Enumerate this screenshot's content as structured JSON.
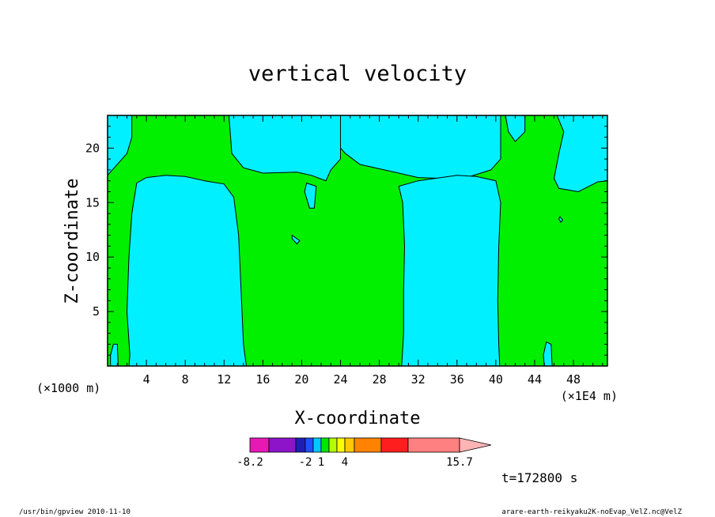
{
  "chart_data": {
    "type": "contour",
    "title": "vertical velocity",
    "xlabel": "X-coordinate",
    "ylabel": "Z-coordinate",
    "x_unit_left": "(×1000 m)",
    "x_unit_right": "(×1E4 m)",
    "xlim": [
      0,
      51.5
    ],
    "ylim": [
      0,
      23
    ],
    "x_ticks": [
      "4",
      "8",
      "12",
      "16",
      "20",
      "24",
      "28",
      "32",
      "36",
      "40",
      "44",
      "48"
    ],
    "y_ticks": [
      "5",
      "10",
      "15",
      "20"
    ],
    "x_tick_values": [
      4,
      8,
      12,
      16,
      20,
      24,
      28,
      32,
      36,
      40,
      44,
      48
    ],
    "y_tick_values": [
      5,
      10,
      15,
      20
    ],
    "time_label": "t=172800 s",
    "colorbar": {
      "colors": [
        "#e619b4",
        "#8d14c8",
        "#1e1eb4",
        "#1e50ff",
        "#00c8ff",
        "#00e600",
        "#b4ff00",
        "#ffff00",
        "#ffc800",
        "#ff8200",
        "#ff1e1e",
        "#ff8080",
        "#ffb4b4"
      ],
      "labels": [
        "-8.2",
        "-2",
        "1",
        "4",
        "15.7"
      ]
    },
    "regions_positive_color": "#00f000",
    "regions_negative_color": "#00f0ff",
    "negative_regions": [
      [
        [
          0,
          23
        ],
        [
          2.5,
          23
        ],
        [
          2.5,
          21
        ],
        [
          2,
          19.5
        ],
        [
          0,
          17.5
        ]
      ],
      [
        [
          3,
          16.8
        ],
        [
          4,
          17.3
        ],
        [
          6,
          17.5
        ],
        [
          8,
          17.4
        ],
        [
          10,
          17
        ],
        [
          12,
          16.7
        ],
        [
          13,
          15.5
        ],
        [
          13.5,
          12
        ],
        [
          13.8,
          6
        ],
        [
          14,
          2
        ],
        [
          14.3,
          0
        ],
        [
          2.2,
          0
        ],
        [
          2.3,
          1
        ],
        [
          2,
          5
        ],
        [
          2.2,
          10
        ],
        [
          2.5,
          14
        ]
      ],
      [
        [
          12.5,
          23
        ],
        [
          24,
          23
        ],
        [
          24,
          19
        ],
        [
          23,
          18
        ],
        [
          22.5,
          17
        ],
        [
          21,
          17.5
        ],
        [
          19.5,
          17.8
        ],
        [
          16,
          17.7
        ],
        [
          14,
          18.2
        ],
        [
          12.8,
          19.5
        ]
      ],
      [
        [
          24,
          23
        ],
        [
          40.5,
          23
        ],
        [
          40.5,
          19
        ],
        [
          39.5,
          18
        ],
        [
          37,
          17.3
        ],
        [
          35,
          17.2
        ],
        [
          32,
          17.3
        ],
        [
          30,
          17.7
        ],
        [
          28.5,
          18
        ],
        [
          26,
          18.5
        ],
        [
          24.5,
          19.5
        ],
        [
          24,
          20
        ]
      ],
      [
        [
          30,
          16.5
        ],
        [
          32,
          17
        ],
        [
          36,
          17.5
        ],
        [
          38,
          17.4
        ],
        [
          40,
          17
        ],
        [
          40.5,
          15
        ],
        [
          40.3,
          11
        ],
        [
          40.2,
          6
        ],
        [
          40.3,
          2
        ],
        [
          40.4,
          0
        ],
        [
          30.3,
          0
        ],
        [
          30.5,
          3
        ],
        [
          30.5,
          7
        ],
        [
          30.6,
          11
        ],
        [
          30.4,
          15
        ]
      ],
      [
        [
          41,
          23
        ],
        [
          43,
          23
        ],
        [
          43,
          21.5
        ],
        [
          42,
          20.6
        ],
        [
          41.3,
          21.5
        ]
      ],
      [
        [
          46.3,
          23
        ],
        [
          51.5,
          23
        ],
        [
          51.5,
          17
        ],
        [
          50.5,
          16.9
        ],
        [
          48.5,
          16
        ],
        [
          46.5,
          16.3
        ],
        [
          46,
          17.2
        ],
        [
          46.5,
          19.5
        ],
        [
          47,
          21.5
        ]
      ],
      [
        [
          20.5,
          16.8
        ],
        [
          21.5,
          16.5
        ],
        [
          21.3,
          14.5
        ],
        [
          20.8,
          14.5
        ],
        [
          20.3,
          16
        ]
      ],
      [
        [
          19,
          12
        ],
        [
          19.8,
          11.5
        ],
        [
          19.5,
          11.2
        ],
        [
          19,
          11.7
        ]
      ],
      [
        [
          0.3,
          0
        ],
        [
          1.1,
          0
        ],
        [
          1,
          2
        ],
        [
          0.6,
          2
        ],
        [
          0.3,
          1
        ]
      ],
      [
        [
          45,
          0
        ],
        [
          45.8,
          0
        ],
        [
          45.7,
          2
        ],
        [
          45.2,
          2.2
        ],
        [
          44.9,
          1
        ]
      ],
      [
        [
          46.6,
          13.7
        ],
        [
          46.9,
          13.4
        ],
        [
          46.7,
          13.2
        ],
        [
          46.5,
          13.5
        ]
      ]
    ]
  },
  "footer": {
    "left": "/usr/bin/gpview 2010-11-10",
    "right": "arare-earth-reikyaku2K-noEvap_VelZ.nc@VelZ"
  }
}
